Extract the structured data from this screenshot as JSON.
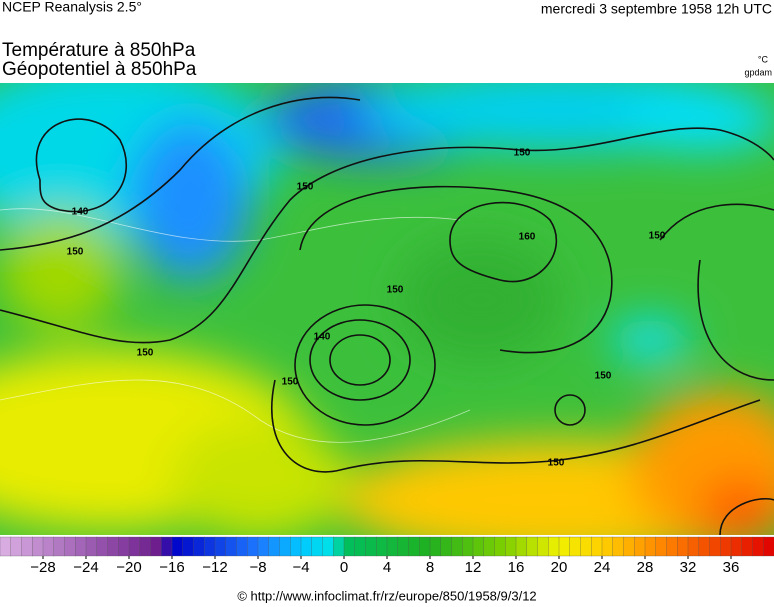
{
  "header": {
    "source": "NCEP Reanalysis 2.5°",
    "date": "mercredi 3 septembre 1958 12h UTC"
  },
  "titles": [
    "Température à 850hPa",
    "Géopotentiel à 850hPa"
  ],
  "units": [
    "°C",
    "gpdam"
  ],
  "map": {
    "contour_labels": [
      150,
      140,
      150,
      150,
      150,
      160,
      150,
      140,
      150,
      150,
      150,
      150
    ]
  },
  "colorbar": {
    "range": [
      -32,
      40
    ],
    "stops": [
      {
        "at": -32,
        "color": "#dcb0e4"
      },
      {
        "at": -17,
        "color": "#6a1a8a"
      },
      {
        "at": -16,
        "color": "#0000c8"
      },
      {
        "at": -8,
        "color": "#1e78ff"
      },
      {
        "at": -4,
        "color": "#00c8ff"
      },
      {
        "at": -1,
        "color": "#00e4e4"
      },
      {
        "at": 0,
        "color": "#00c060"
      },
      {
        "at": 8,
        "color": "#20b020"
      },
      {
        "at": 15,
        "color": "#80d000"
      },
      {
        "at": 20,
        "color": "#f0f000"
      },
      {
        "at": 24,
        "color": "#ffd000"
      },
      {
        "at": 30,
        "color": "#ff8000"
      },
      {
        "at": 40,
        "color": "#e00000"
      }
    ],
    "ticks": [
      {
        "value": -28,
        "label": "−28"
      },
      {
        "value": -24,
        "label": "−24"
      },
      {
        "value": -20,
        "label": "−20"
      },
      {
        "value": -16,
        "label": "−16"
      },
      {
        "value": -12,
        "label": "−12"
      },
      {
        "value": -8,
        "label": "−8"
      },
      {
        "value": -4,
        "label": "−4"
      },
      0,
      4,
      8,
      12,
      16,
      20,
      24,
      28,
      32,
      36
    ]
  },
  "footer": "© http://www.infoclimat.fr/rz/europe/850/1958/9/3/12"
}
